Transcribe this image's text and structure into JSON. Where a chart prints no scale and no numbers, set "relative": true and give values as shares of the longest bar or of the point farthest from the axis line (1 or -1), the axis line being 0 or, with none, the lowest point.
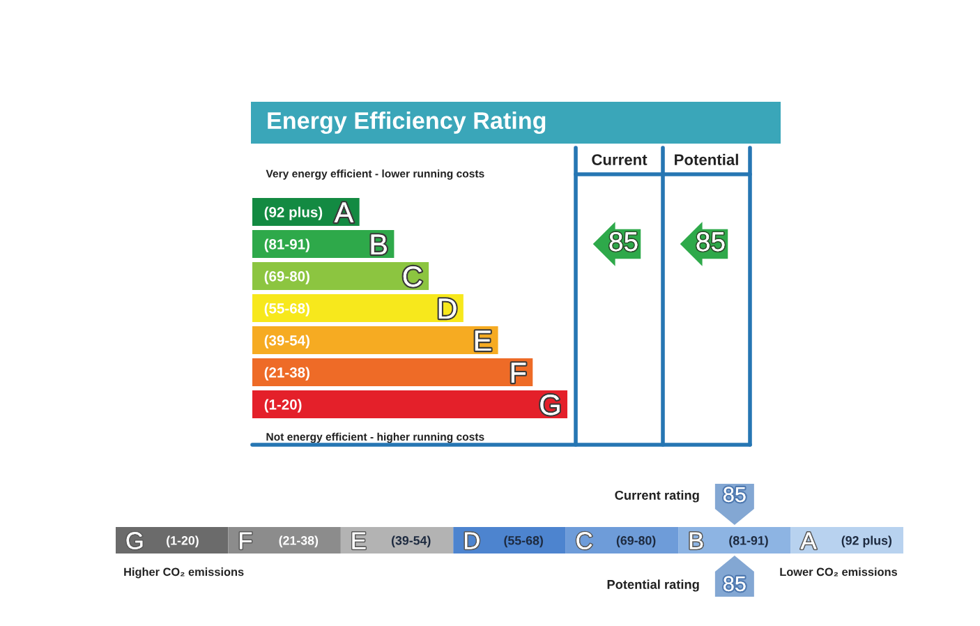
{
  "chart_data": [
    {
      "type": "bar",
      "orientation": "horizontal",
      "relative": true,
      "title": "Energy Efficiency Rating",
      "categories": [
        "A",
        "B",
        "C",
        "D",
        "E",
        "F",
        "G"
      ],
      "values": [
        0.34,
        0.45,
        0.56,
        0.67,
        0.78,
        0.89,
        1
      ],
      "colors": [
        "#138a42",
        "#2ea94a",
        "#8cc540",
        "#f7e81c",
        "#f6ab22",
        "#ee6b27",
        "#e4202a"
      ],
      "annotations": [
        {
          "text": "(92 plus)",
          "x": 0,
          "y": "A"
        },
        {
          "text": "(81-91)",
          "x": 0,
          "y": "B"
        },
        {
          "text": "(69-80)",
          "x": 0,
          "y": "C"
        },
        {
          "text": "(55-68)",
          "x": 0,
          "y": "D"
        },
        {
          "text": "(39-54)",
          "x": 0,
          "y": "E"
        },
        {
          "text": "(21-38)",
          "x": 0,
          "y": "F"
        },
        {
          "text": "(1-20)",
          "x": 0,
          "y": "G"
        },
        "Very energy efficient - lower running costs",
        "Not energy efficient - higher running costs",
        "Current",
        "Potential",
        "85",
        "85"
      ]
    },
    {
      "type": "other",
      "categories": [
        "G",
        "F",
        "E",
        "D",
        "C",
        "B",
        "A"
      ],
      "colors": [
        "#6b6b6b",
        "#8c8c8c",
        "#b3b3b3",
        "#4d84cf",
        "#6e9cd9",
        "#8db4e3",
        "#b8d2ef"
      ],
      "annotations": [
        {
          "text": "(1-20)",
          "x": "G"
        },
        {
          "text": "(21-38)",
          "x": "F"
        },
        {
          "text": "(39-54)",
          "x": "E"
        },
        {
          "text": "(55-68)",
          "x": "D"
        },
        {
          "text": "(69-80)",
          "x": "C"
        },
        {
          "text": "(81-91)",
          "x": "B"
        },
        {
          "text": "(92 plus)",
          "x": "A"
        },
        "Current rating",
        "Potential rating",
        "Higher CO₂ emissions",
        "Lower CO₂ emissions",
        {
          "text": "85",
          "x": "B"
        },
        {
          "text": "85",
          "x": "B"
        }
      ]
    }
  ]
}
